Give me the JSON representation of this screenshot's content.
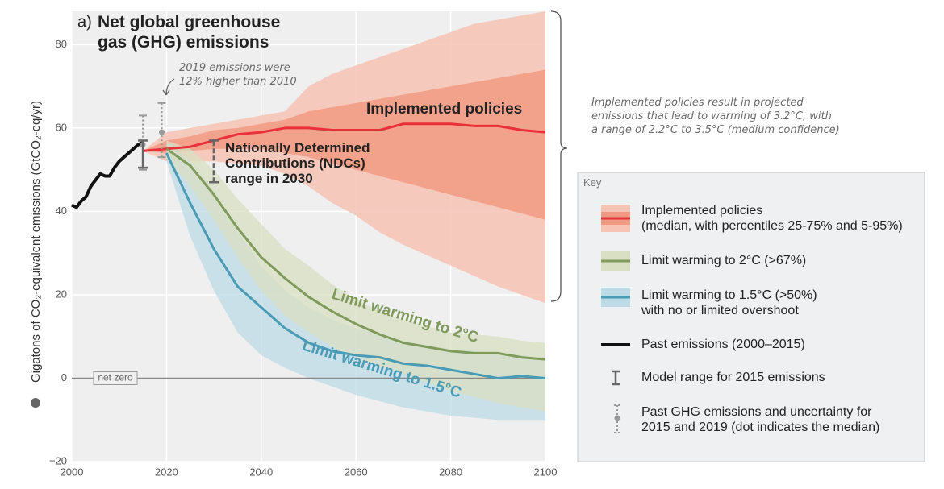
{
  "chart_data": {
    "type": "line",
    "panel": "a)",
    "title": "Net global greenhouse\ngas (GHG) emissions",
    "y_label": "Gigatons of CO₂-equivalent emissions (GtCO₂-eq/yr)",
    "xlim": [
      2000,
      2100
    ],
    "ylim": [
      -20,
      88
    ],
    "xticks": [
      2000,
      2020,
      2040,
      2060,
      2080,
      2100
    ],
    "yticks": [
      {
        "value": -20,
        "label": "−20"
      },
      0,
      20,
      40,
      60,
      80
    ],
    "grid": true,
    "key_title": "Key",
    "series": [
      {
        "name": "Implemented policies\n(median, with percentiles 25-75% and 5-95%)",
        "label": "Implemented policies",
        "color": "#e8303a",
        "band_colors": [
          "#f6c3b4",
          "#f19a83"
        ],
        "x": [
          2015,
          2020,
          2025,
          2030,
          2035,
          2040,
          2045,
          2050,
          2055,
          2060,
          2065,
          2070,
          2075,
          2080,
          2085,
          2090,
          2095,
          2100
        ],
        "values": [
          54.5,
          55,
          55.5,
          57,
          58.5,
          59,
          60,
          60,
          59.5,
          59.5,
          59.5,
          61,
          61,
          61,
          60.5,
          60.5,
          59.5,
          59
        ],
        "p5": [
          54.5,
          52,
          52,
          52,
          51.5,
          51,
          49,
          46,
          42,
          39,
          35,
          32,
          29.5,
          27,
          24.5,
          22,
          20,
          18
        ],
        "p25": [
          54.5,
          54,
          54.5,
          55,
          55,
          55,
          54,
          53,
          51.5,
          50,
          48.5,
          47,
          45.5,
          44,
          42.5,
          41,
          39.5,
          38
        ],
        "p75": [
          54.5,
          57,
          58,
          59.5,
          60,
          61,
          62,
          64,
          65,
          66,
          67,
          68,
          69,
          70,
          71,
          72,
          73,
          74
        ],
        "p95": [
          54.5,
          59,
          60,
          61,
          62,
          63,
          64,
          70,
          73,
          75,
          77,
          79,
          81,
          83,
          85,
          86,
          87,
          88
        ]
      },
      {
        "name": "Limit warming to 2°C (>67%)",
        "label": "Limit warming to 2°C",
        "color": "#7f9a5a",
        "band_color": "#d8dfc2",
        "x": [
          2020,
          2025,
          2030,
          2035,
          2040,
          2045,
          2050,
          2055,
          2060,
          2065,
          2070,
          2075,
          2080,
          2085,
          2090,
          2095,
          2100
        ],
        "values": [
          55,
          51,
          44,
          36,
          29,
          24,
          19.5,
          16,
          13,
          10.5,
          8.5,
          7.5,
          6.5,
          6,
          6,
          5,
          4.5
        ],
        "lower": [
          53,
          46,
          38,
          29,
          21,
          15,
          11,
          7.5,
          5,
          3,
          1,
          -1,
          -3,
          -4.5,
          -6,
          -7,
          -8
        ],
        "upper": [
          57,
          55,
          50,
          43,
          37,
          31,
          27,
          22.5,
          19,
          16,
          14,
          12.5,
          11,
          10.5,
          10,
          9,
          8.5
        ]
      },
      {
        "name": "Limit warming to 1.5°C (>50%)\nwith no or limited overshoot",
        "label": "Limit warming to 1.5°C",
        "color": "#4a9bb5",
        "band_color": "#bcdbe6",
        "x": [
          2020,
          2025,
          2030,
          2035,
          2040,
          2045,
          2050,
          2055,
          2060,
          2065,
          2070,
          2075,
          2080,
          2085,
          2090,
          2095,
          2100
        ],
        "values": [
          54,
          42,
          31,
          22,
          17,
          12,
          8.5,
          6.5,
          5.5,
          5,
          3.5,
          3,
          2,
          1,
          0,
          0.5,
          0
        ],
        "lower": [
          52,
          34,
          21,
          11,
          5.5,
          2.5,
          0,
          -2,
          -4,
          -5.5,
          -7,
          -8,
          -9,
          -9.5,
          -10,
          -10,
          -10
        ],
        "upper": [
          57,
          52,
          45,
          35,
          27,
          21,
          17,
          14,
          12,
          10.5,
          9,
          8,
          7,
          6.5,
          6,
          5.5,
          5
        ]
      },
      {
        "name": "Past emissions (2000–2015)",
        "color": "#111111",
        "x": [
          2000,
          2001,
          2002,
          2003,
          2004,
          2005,
          2006,
          2007,
          2008,
          2009,
          2010,
          2011,
          2012,
          2013,
          2014,
          2015
        ],
        "values": [
          41.5,
          41,
          42.5,
          43.5,
          46,
          47.5,
          49,
          48.5,
          48.5,
          50.5,
          52,
          53,
          54,
          55,
          56,
          56.5
        ]
      }
    ],
    "model_range": {
      "name": "Model range for 2015 emissions",
      "color": "#666666",
      "x": 2015,
      "low": 50.5,
      "high": 57
    },
    "past_uncertainty": {
      "name": "Past GHG emissions and uncertainty for\n2015 and 2019 (dot indicates the median)",
      "color": "#999999",
      "points": [
        {
          "x": 2015,
          "low": 50,
          "median": 56,
          "high": 63
        },
        {
          "x": 2019,
          "low": 53,
          "median": 59,
          "high": 66
        }
      ]
    },
    "ndc": {
      "label": "Nationally Determined\nContributions (NDCs)\nrange in 2030",
      "color": "#666666",
      "x": 2030,
      "low": 47,
      "high": 57
    },
    "zero_label": "net zero",
    "annotation_2019": "2019 emissions were\n12% higher than 2010",
    "annotation_brace": "Implemented policies result in projected\nemissions that lead to warming of 3.2°C, with\na range of 2.2°C to 3.5°C (medium confidence)"
  }
}
